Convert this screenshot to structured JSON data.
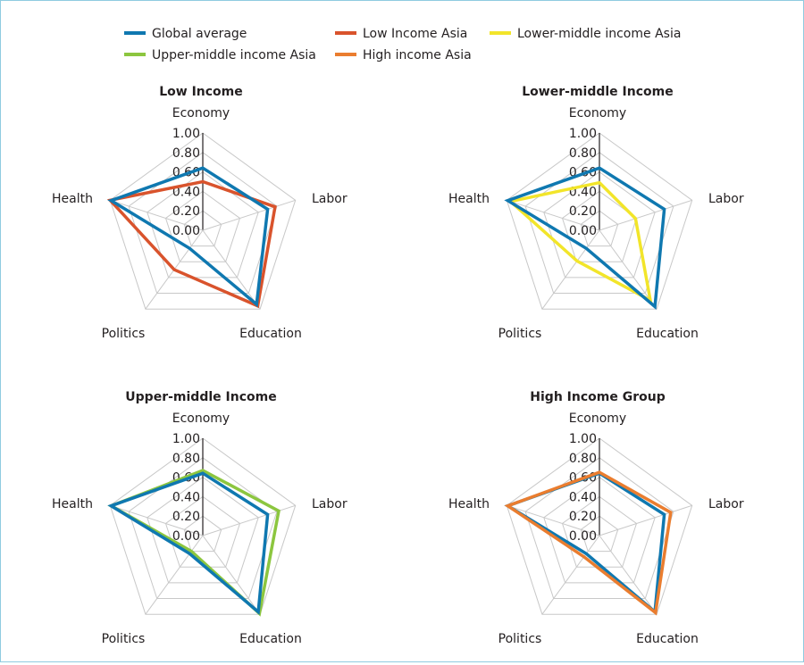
{
  "chart_data": {
    "type": "radar",
    "axes": [
      "Economy",
      "Labor",
      "Education",
      "Politics",
      "Health"
    ],
    "ticks": [
      "1.00",
      "0.80",
      "0.60",
      "0.40",
      "0.20",
      "0.00"
    ],
    "rmax": 1.0,
    "grid": true,
    "legend_position": "top",
    "legend": [
      {
        "name": "Global average",
        "color": "#0f78b0"
      },
      {
        "name": "Low Income Asia",
        "color": "#d9532c"
      },
      {
        "name": "Lower-middle income Asia",
        "color": "#f2e52a"
      },
      {
        "name": "Upper-middle income Asia",
        "color": "#8cc63f"
      },
      {
        "name": "High income Asia",
        "color": "#ea7d2f"
      }
    ],
    "panels": [
      {
        "title": "Low Income",
        "series": [
          {
            "name": "Low Income Asia",
            "color": "#d9532c",
            "values": [
              0.5,
              0.78,
              0.96,
              0.5,
              1.0
            ]
          },
          {
            "name": "Global average",
            "color": "#0f78b0",
            "values": [
              0.64,
              0.7,
              0.94,
              0.23,
              0.99
            ]
          }
        ]
      },
      {
        "title": "Lower-middle Income",
        "series": [
          {
            "name": "Lower-middle income Asia",
            "color": "#f2e52a",
            "values": [
              0.49,
              0.39,
              0.89,
              0.39,
              0.96
            ]
          },
          {
            "name": "Global average",
            "color": "#0f78b0",
            "values": [
              0.64,
              0.7,
              0.97,
              0.23,
              0.99
            ]
          }
        ]
      },
      {
        "title": "Upper-middle Income",
        "series": [
          {
            "name": "Upper-middle income Asia",
            "color": "#8cc63f",
            "values": [
              0.67,
              0.82,
              0.99,
              0.2,
              0.99
            ]
          },
          {
            "name": "Global average",
            "color": "#0f78b0",
            "values": [
              0.64,
              0.7,
              0.97,
              0.23,
              0.99
            ]
          }
        ]
      },
      {
        "title": "High Income Group",
        "series": [
          {
            "name": "Global average",
            "color": "#0f78b0",
            "values": [
              0.64,
              0.7,
              0.97,
              0.23,
              0.99
            ]
          },
          {
            "name": "High income Asia",
            "color": "#ea7d2f",
            "values": [
              0.65,
              0.77,
              0.98,
              0.27,
              0.99
            ]
          }
        ]
      }
    ]
  }
}
